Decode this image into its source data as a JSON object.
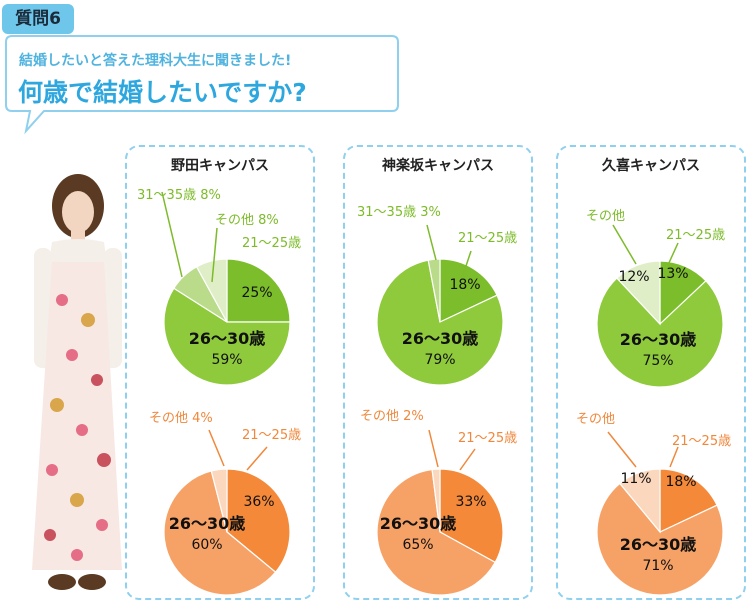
{
  "header": {
    "badge": "質問6",
    "subtitle": "結婚したいと答えた理科大生に聞きました!",
    "title": "何歳で結婚したいですか?"
  },
  "colors": {
    "accent": "#6ec6ea",
    "green_main": "#8fca3c",
    "green_mid": "#7cbd2b",
    "green_light": "#dfeec7",
    "orange_main": "#f6a266",
    "orange_mid": "#f4893a",
    "orange_light": "#fbd7bd",
    "green_label": "#7dbb2a",
    "orange_label": "#f0883c"
  },
  "panels": [
    {
      "title": "野田キャンパス"
    },
    {
      "title": "神楽坂キャンパス"
    },
    {
      "title": "久喜キャンパス"
    }
  ],
  "chart_data": [
    {
      "type": "pie",
      "campus": "野田キャンパス",
      "group": "green",
      "slices": [
        {
          "label": "21〜25歳",
          "value": 25,
          "pct": "25%"
        },
        {
          "label": "26〜30歳",
          "value": 59,
          "pct": "59%"
        },
        {
          "label": "31〜35歳",
          "value": 8,
          "pct": "8%"
        },
        {
          "label": "その他",
          "value": 8,
          "pct": "8%"
        }
      ]
    },
    {
      "type": "pie",
      "campus": "神楽坂キャンパス",
      "group": "green",
      "slices": [
        {
          "label": "21〜25歳",
          "value": 18,
          "pct": "18%"
        },
        {
          "label": "26〜30歳",
          "value": 79,
          "pct": "79%"
        },
        {
          "label": "31〜35歳",
          "value": 3,
          "pct": "3%"
        }
      ]
    },
    {
      "type": "pie",
      "campus": "久喜キャンパス",
      "group": "green",
      "slices": [
        {
          "label": "21〜25歳",
          "value": 13,
          "pct": "13%"
        },
        {
          "label": "26〜30歳",
          "value": 75,
          "pct": "75%"
        },
        {
          "label": "その他",
          "value": 12,
          "pct": "12%"
        }
      ]
    },
    {
      "type": "pie",
      "campus": "野田キャンパス",
      "group": "orange",
      "slices": [
        {
          "label": "21〜25歳",
          "value": 36,
          "pct": "36%"
        },
        {
          "label": "26〜30歳",
          "value": 60,
          "pct": "60%"
        },
        {
          "label": "その他",
          "value": 4,
          "pct": "4%"
        }
      ]
    },
    {
      "type": "pie",
      "campus": "神楽坂キャンパス",
      "group": "orange",
      "slices": [
        {
          "label": "21〜25歳",
          "value": 33,
          "pct": "33%"
        },
        {
          "label": "26〜30歳",
          "value": 65,
          "pct": "65%"
        },
        {
          "label": "その他",
          "value": 2,
          "pct": "2%"
        }
      ]
    },
    {
      "type": "pie",
      "campus": "久喜キャンパス",
      "group": "orange",
      "slices": [
        {
          "label": "21〜25歳",
          "value": 18,
          "pct": "18%"
        },
        {
          "label": "26〜30歳",
          "value": 71,
          "pct": "71%"
        },
        {
          "label": "その他",
          "value": 11,
          "pct": "11%"
        }
      ]
    }
  ]
}
